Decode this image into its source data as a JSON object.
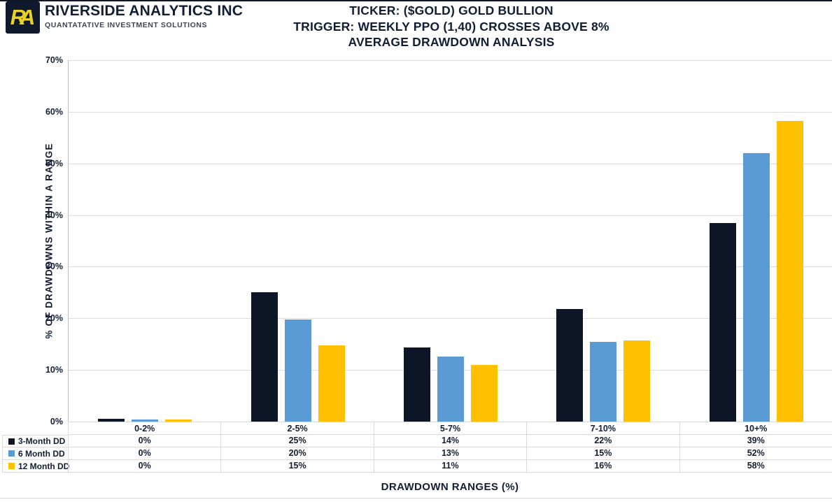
{
  "page": {
    "background": "#ffffff",
    "top_bar_color": "#101828"
  },
  "header": {
    "logo": {
      "monogram": "RA",
      "bg_color": "#0e1a2b",
      "letter_color": "#e9d227"
    },
    "company_name": "RIVERSIDE ANALYTICS INC",
    "tagline": "QUANTATATIVE INVESTMENT SOLUTIONS",
    "tagline_color": "#3c4554"
  },
  "title": {
    "lines": [
      "TICKER: ($GOLD) GOLD BULLION",
      "TRIGGER: WEEKLY PPO (1,40) CROSSES ABOVE 8%",
      "AVERAGE DRAWDOWN ANALYSIS"
    ]
  },
  "chart_data": {
    "type": "bar",
    "title": "TICKER: ($GOLD) GOLD BULLION — TRIGGER: WEEKLY PPO (1,40) CROSSES ABOVE 8% — AVERAGE DRAWDOWN ANALYSIS",
    "categories": [
      "0-2%",
      "2-5%",
      "5-7%",
      "7-10%",
      "10+%"
    ],
    "series": [
      {
        "name": "3-Month DD",
        "color": "#0d1626",
        "values": [
          0.5,
          25.0,
          14.4,
          21.8,
          38.5
        ],
        "table_values": [
          "0%",
          "25%",
          "14%",
          "22%",
          "39%"
        ]
      },
      {
        "name": "6 Month DD",
        "color": "#5b9bd5",
        "values": [
          0.4,
          19.8,
          12.6,
          15.4,
          52.0
        ],
        "table_values": [
          "0%",
          "20%",
          "13%",
          "15%",
          "52%"
        ]
      },
      {
        "name": "12 Month DD",
        "color": "#ffc000",
        "values": [
          0.4,
          14.7,
          11.0,
          15.7,
          58.2
        ],
        "table_values": [
          "0%",
          "15%",
          "11%",
          "16%",
          "58%"
        ]
      }
    ],
    "xlabel": "DRAWDOWN RANGES (%)",
    "ylabel": "% OF DRAWDOWNS WITHIN A RANGE",
    "ylim": [
      0,
      70
    ],
    "ytick_step": 10,
    "ytick_labels": [
      "0%",
      "10%",
      "20%",
      "30%",
      "40%",
      "50%",
      "60%",
      "70%"
    ],
    "grid": true,
    "gridline_color": "#dcdcdc",
    "axis_line_color": "#bfbfbf",
    "table_border_color": "#d9d9d9",
    "text_color": "#121e33",
    "legend_position": "table-rows-left"
  }
}
